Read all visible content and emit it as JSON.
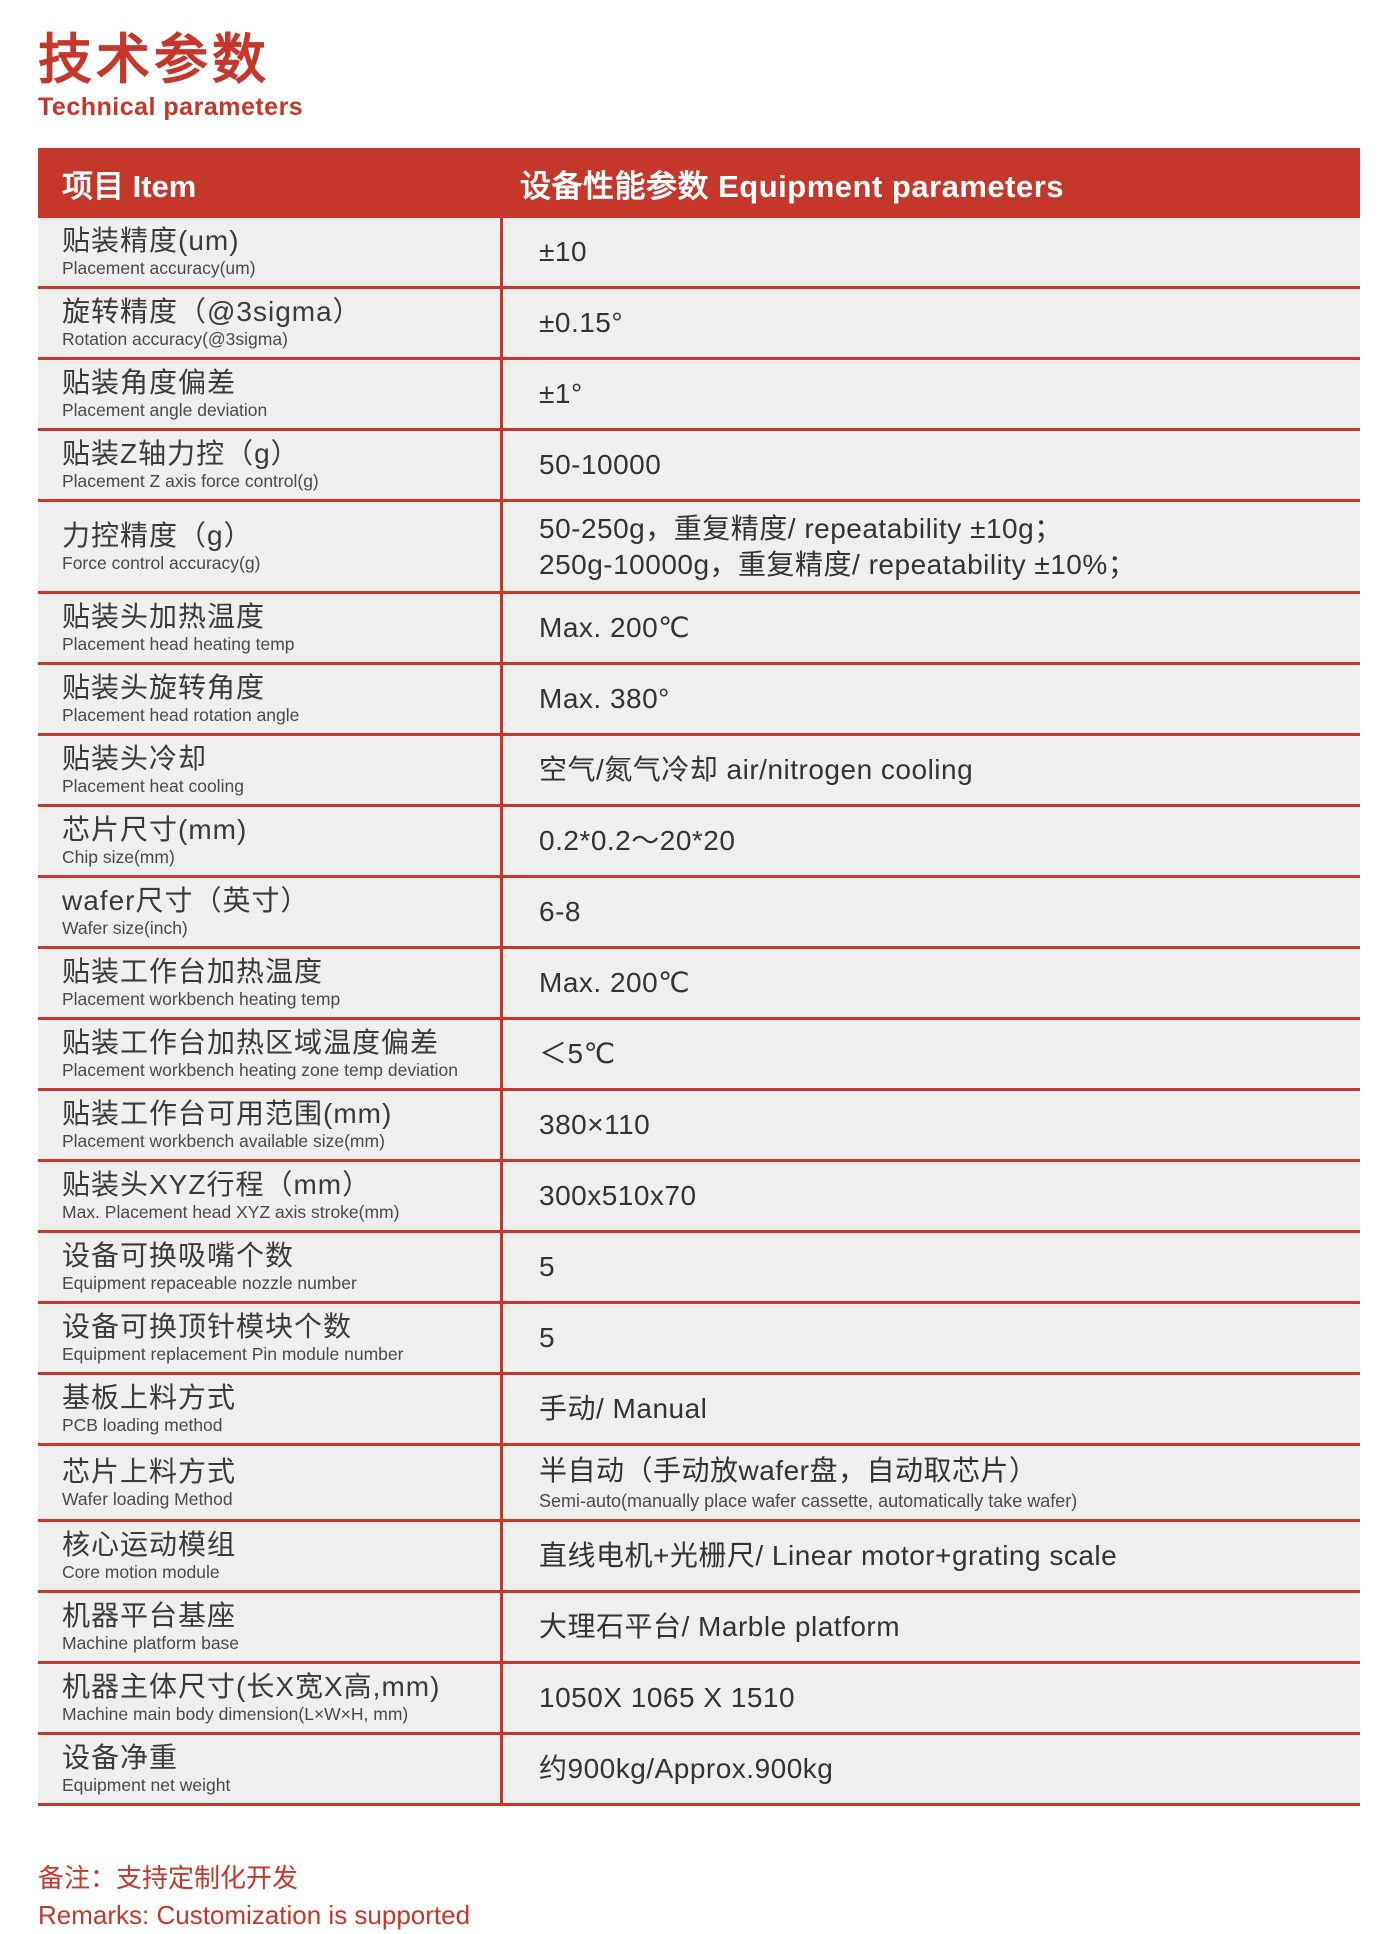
{
  "page": {
    "title_zh": "技术参数",
    "title_en": "Technical parameters",
    "remarks_zh": "备注：支持定制化开发",
    "remarks_en": "Remarks: Customization is supported"
  },
  "colors": {
    "accent_red": "#c5372b",
    "row_background": "#efeff0",
    "header_text": "#ffffff",
    "body_text": "#3a3a3a"
  },
  "table": {
    "header": {
      "item": "项目 Item",
      "params": "设备性能参数 Equipment parameters"
    },
    "rows": [
      {
        "label_zh": "贴装精度(um)",
        "label_en": "Placement accuracy(um)",
        "value_lines": [
          "±10"
        ]
      },
      {
        "label_zh": "旋转精度（@3sigma）",
        "label_en": "Rotation accuracy(@3sigma)",
        "value_lines": [
          "±0.15°"
        ]
      },
      {
        "label_zh": "贴装角度偏差",
        "label_en": "Placement angle deviation",
        "value_lines": [
          "±1°"
        ]
      },
      {
        "label_zh": "贴装Z轴力控（g）",
        "label_en": "Placement Z axis force control(g)",
        "value_lines": [
          "50-10000"
        ]
      },
      {
        "label_zh": "力控精度（g）",
        "label_en": "Force control accuracy(g)",
        "value_lines": [
          "50-250g，重复精度/ repeatability ±10g；",
          "250g-10000g，重复精度/ repeatability ±10%；"
        ],
        "tall": true
      },
      {
        "label_zh": "贴装头加热温度",
        "label_en": "Placement head heating temp",
        "value_lines": [
          "Max. 200℃"
        ]
      },
      {
        "label_zh": "贴装头旋转角度",
        "label_en": "Placement head rotation angle",
        "value_lines": [
          "Max. 380°"
        ]
      },
      {
        "label_zh": "贴装头冷却",
        "label_en": "Placement heat cooling",
        "value_lines": [
          "空气/氮气冷却 air/nitrogen cooling"
        ]
      },
      {
        "label_zh": "芯片尺寸(mm)",
        "label_en": "Chip size(mm)",
        "value_lines": [
          "0.2*0.2～20*20"
        ]
      },
      {
        "label_zh": "wafer尺寸（英寸）",
        "label_en": "Wafer size(inch)",
        "value_lines": [
          "6-8"
        ]
      },
      {
        "label_zh": "贴装工作台加热温度",
        "label_en": "Placement workbench heating temp",
        "value_lines": [
          "Max. 200℃"
        ]
      },
      {
        "label_zh": "贴装工作台加热区域温度偏差",
        "label_en": "Placement workbench heating zone temp deviation",
        "value_lines": [
          "＜5℃"
        ]
      },
      {
        "label_zh": "贴装工作台可用范围(mm)",
        "label_en": "Placement workbench available size(mm)",
        "value_lines": [
          "380×110"
        ]
      },
      {
        "label_zh": "贴装头XYZ行程（mm）",
        "label_en": "Max. Placement head  XYZ axis stroke(mm)",
        "value_lines": [
          "300x510x70"
        ]
      },
      {
        "label_zh": "设备可换吸嘴个数",
        "label_en": "Equipment repaceable nozzle number",
        "value_lines": [
          "5"
        ]
      },
      {
        "label_zh": "设备可换顶针模块个数",
        "label_en": "Equipment replacement Pin module number",
        "value_lines": [
          "5"
        ]
      },
      {
        "label_zh": "基板上料方式",
        "label_en": "PCB loading method",
        "value_lines": [
          "手动/ Manual"
        ]
      },
      {
        "label_zh": "芯片上料方式",
        "label_en": "Wafer loading Method",
        "value_lines": [
          "半自动（手动放wafer盘，自动取芯片）"
        ],
        "value_sub": "Semi-auto(manually place wafer cassette, automatically take wafer)"
      },
      {
        "label_zh": "核心运动模组",
        "label_en": "Core motion module",
        "value_lines": [
          "直线电机+光栅尺/ Linear motor+grating scale"
        ]
      },
      {
        "label_zh": "机器平台基座",
        "label_en": "Machine platform base",
        "value_lines": [
          "大理石平台/ Marble platform"
        ]
      },
      {
        "label_zh": "机器主体尺寸(长X宽X高,mm)",
        "label_en": "Machine main body dimension(L×W×H, mm)",
        "value_lines": [
          "1050X 1065 X 1510"
        ]
      },
      {
        "label_zh": "设备净重",
        "label_en": "Equipment net weight",
        "value_lines": [
          "约900kg/Approx.900kg"
        ]
      }
    ]
  }
}
